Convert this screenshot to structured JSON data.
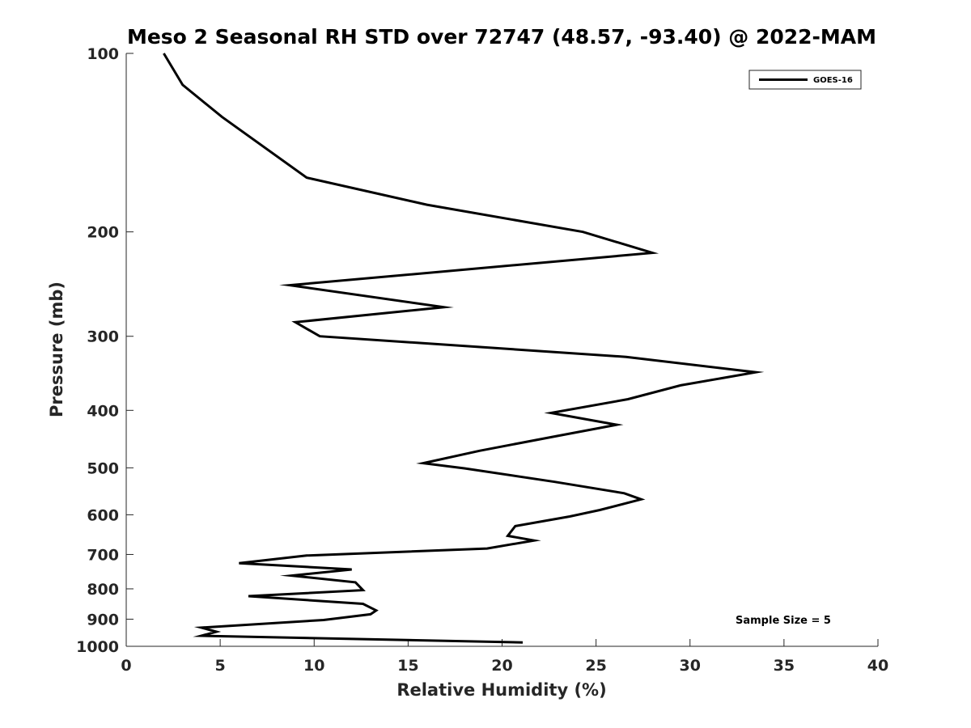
{
  "chart_data": {
    "type": "line",
    "title": "Meso 2 Seasonal RH STD over 72747 (48.57, -93.40) @ 2022-MAM",
    "xlabel": "Relative Humidity (%)",
    "ylabel": "Pressure (mb)",
    "xlim": [
      0,
      40
    ],
    "ylim": [
      100,
      1000
    ],
    "yscale": "log",
    "y_reversed": true,
    "grid": false,
    "x_ticks": [
      0,
      5,
      10,
      15,
      20,
      25,
      30,
      35,
      40
    ],
    "x_tick_labels": [
      "0",
      "5",
      "10",
      "15",
      "20",
      "25",
      "30",
      "35",
      "40"
    ],
    "y_ticks": [
      100,
      200,
      300,
      400,
      500,
      600,
      700,
      800,
      900,
      1000
    ],
    "y_tick_labels": [
      "100",
      "200",
      "300",
      "400",
      "500",
      "600",
      "700",
      "800",
      "900",
      "1000"
    ],
    "legend": {
      "position": "top-right",
      "entries": [
        "GOES-16"
      ]
    },
    "annotation": "Sample Size = 5",
    "series": [
      {
        "name": "GOES-16",
        "color": "#000000",
        "x": [
          2.0,
          3.0,
          5.1,
          9.6,
          16.0,
          24.3,
          28.0,
          8.7,
          16.9,
          9.0,
          10.3,
          26.6,
          33.5,
          29.5,
          26.7,
          22.6,
          26.1,
          22.9,
          18.8,
          15.8,
          18.0,
          22.8,
          26.5,
          27.4,
          25.2,
          23.6,
          20.7,
          20.3,
          21.7,
          19.2,
          9.6,
          6.0,
          12.0,
          8.8,
          12.2,
          12.6,
          6.5,
          12.6,
          13.3,
          13.0,
          10.5,
          4.0,
          4.8,
          4.0,
          21.1
        ],
        "y": [
          100,
          113,
          128,
          162,
          180,
          200,
          217,
          246,
          268,
          284,
          300,
          325,
          345,
          363,
          383,
          404,
          423,
          442,
          468,
          491,
          501,
          528,
          552,
          565,
          589,
          604,
          627,
          651,
          663,
          684,
          703,
          724,
          742,
          760,
          780,
          804,
          823,
          848,
          870,
          883,
          903,
          930,
          945,
          960,
          985
        ]
      }
    ]
  }
}
